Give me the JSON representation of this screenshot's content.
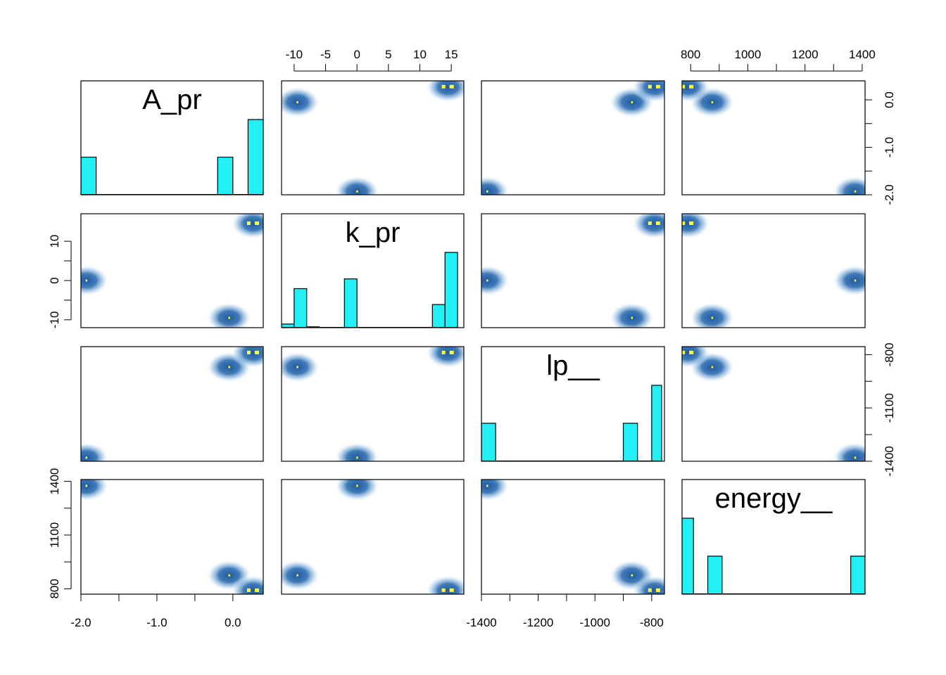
{
  "chart_data": {
    "type": "scatter",
    "subtype": "pairs-smoothscatter",
    "variables": [
      {
        "name": "A_pr",
        "range": [
          -2.0,
          0.4
        ]
      },
      {
        "name": "k_pr",
        "range": [
          -12,
          17
        ]
      },
      {
        "name": "lp__",
        "range": [
          -1400,
          -755
        ]
      },
      {
        "name": "energy__",
        "range": [
          770,
          1410
        ]
      }
    ],
    "ticks": {
      "A_pr": {
        "values": [
          -2.0,
          -1.5,
          -1.0,
          -0.5,
          0.0
        ],
        "labels": [
          "-2.0",
          "",
          "-1.0",
          "",
          "0.0"
        ]
      },
      "k_pr": {
        "values": [
          -10,
          -5,
          0,
          5,
          10,
          15
        ],
        "labels": [
          "-10",
          "-5",
          "0",
          "5",
          "10",
          "15"
        ]
      },
      "k_pr_left": {
        "values": [
          -10,
          -5,
          0,
          5,
          10
        ],
        "labels": [
          "-10",
          "",
          "0",
          "",
          "10"
        ]
      },
      "lp__": {
        "values": [
          -1400,
          -1300,
          -1200,
          -1100,
          -1000,
          -900,
          -800
        ],
        "labels": [
          "-1400",
          "",
          "-1200",
          "",
          "-1000",
          "",
          "-800"
        ]
      },
      "lp__right": {
        "values": [
          -1400,
          -1250,
          -1100,
          -950,
          -800
        ],
        "labels": [
          "-1400",
          "",
          "-1100",
          "",
          "-800"
        ]
      },
      "energy__": {
        "values": [
          800,
          900,
          1000,
          1100,
          1200,
          1300,
          1400
        ],
        "labels": [
          "800",
          "",
          "1000",
          "",
          "1200",
          "",
          "1400"
        ]
      },
      "energy__left": {
        "values": [
          800,
          950,
          1100,
          1250,
          1400
        ],
        "labels": [
          "800",
          "",
          "1100",
          "",
          "1400"
        ]
      }
    },
    "points": [
      {
        "A_pr": -1.93,
        "k_pr": 0.0,
        "lp__": -1380,
        "energy__": 1375,
        "weight": 1
      },
      {
        "A_pr": -0.05,
        "k_pr": -9.5,
        "lp__": -870,
        "energy__": 875,
        "weight": 1
      },
      {
        "A_pr": 0.27,
        "k_pr": 14.5,
        "lp__": -790,
        "energy__": 790,
        "weight": 2
      }
    ],
    "histograms": {
      "A_pr": {
        "breaks": [
          -2.0,
          -1.8,
          -0.2,
          0.0,
          0.2,
          0.4
        ],
        "heights": [
          1,
          0,
          1,
          0,
          2
        ]
      },
      "k_pr": {
        "breaks": [
          -12,
          -10,
          -8,
          -6,
          -2,
          0,
          12,
          14,
          16
        ],
        "heights": [
          0.13,
          1.4,
          0.03,
          0,
          1.75,
          0,
          0.83,
          2.7
        ]
      },
      "lp__": {
        "breaks": [
          -1400,
          -1350,
          -900,
          -850,
          -800,
          -765
        ],
        "heights": [
          1,
          0,
          1,
          0,
          2
        ]
      },
      "energy__": {
        "breaks": [
          770,
          810,
          860,
          910,
          1360,
          1410
        ],
        "heights": [
          2,
          0,
          1,
          0,
          1
        ]
      }
    },
    "colors": {
      "density": "#2c6cb0",
      "density_light": "#c9ddf0",
      "highlight": "#ffff33",
      "histogram_fill": "#22f0f5",
      "frame": "#000000"
    },
    "grid": false
  }
}
